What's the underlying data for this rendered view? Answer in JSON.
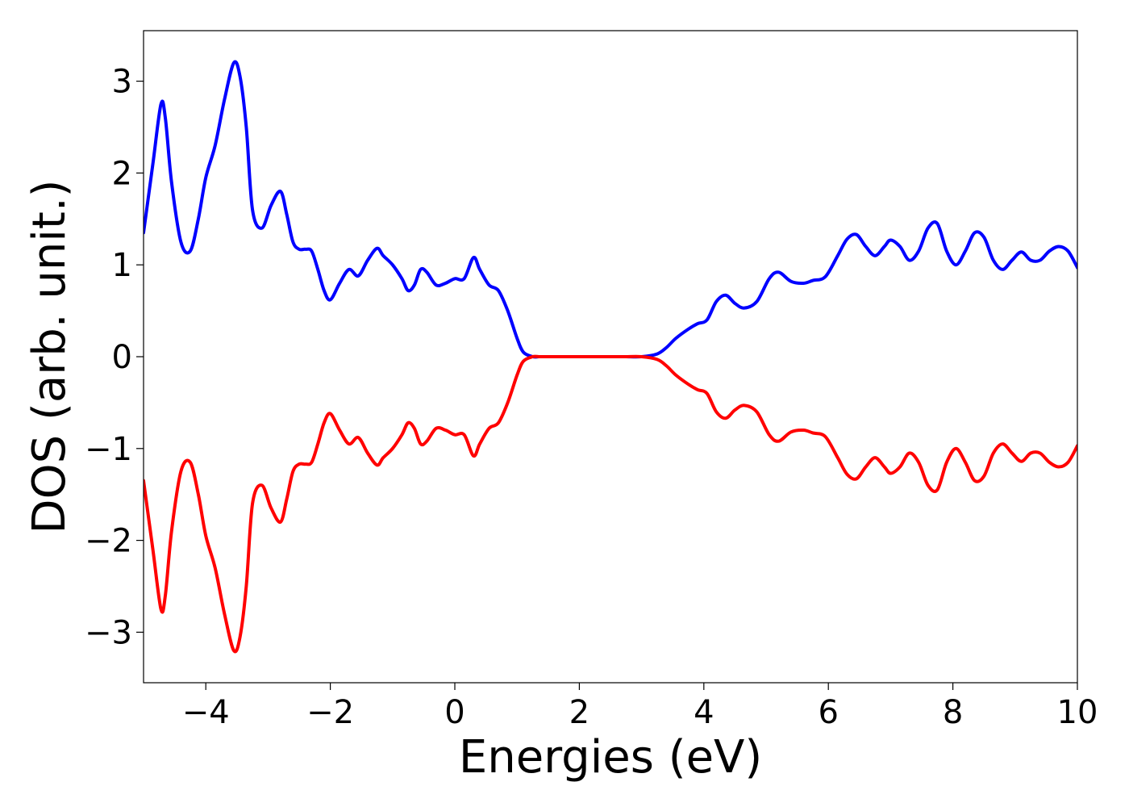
{
  "chart_data": {
    "type": "line",
    "title": "",
    "xlabel": "Energies (eV)",
    "ylabel": "DOS (arb. unit.)",
    "xlim": [
      -5,
      10
    ],
    "ylim": [
      -3.55,
      3.55
    ],
    "x_ticks": [
      -4,
      -2,
      0,
      2,
      4,
      6,
      8,
      10
    ],
    "y_ticks": [
      -3,
      -2,
      -1,
      0,
      1,
      2,
      3
    ],
    "x_tick_labels": [
      "−4",
      "−2",
      "0",
      "2",
      "4",
      "6",
      "8",
      "10"
    ],
    "y_tick_labels": [
      "−3",
      "−2",
      "−1",
      "0",
      "1",
      "2",
      "3"
    ],
    "grid": false,
    "legend": "none",
    "series": [
      {
        "color": "#0000ff",
        "x": [
          -5.0,
          -4.85,
          -4.72,
          -4.65,
          -4.55,
          -4.4,
          -4.25,
          -4.12,
          -4.0,
          -3.85,
          -3.7,
          -3.55,
          -3.45,
          -3.35,
          -3.25,
          -3.1,
          -2.95,
          -2.8,
          -2.7,
          -2.6,
          -2.5,
          -2.4,
          -2.3,
          -2.2,
          -2.1,
          -2.0,
          -1.85,
          -1.7,
          -1.55,
          -1.4,
          -1.25,
          -1.15,
          -1.0,
          -0.85,
          -0.75,
          -0.65,
          -0.55,
          -0.45,
          -0.3,
          -0.15,
          0.0,
          0.15,
          0.3,
          0.4,
          0.55,
          0.7,
          0.85,
          1.0,
          1.1,
          1.25,
          1.35,
          1.45,
          1.6,
          1.72,
          1.85,
          2.0,
          2.15,
          2.3,
          2.45,
          2.6,
          2.75,
          3.0,
          3.25,
          3.4,
          3.55,
          3.75,
          3.9,
          4.05,
          4.2,
          4.35,
          4.5,
          4.65,
          4.85,
          5.05,
          5.2,
          5.4,
          5.6,
          5.75,
          5.95,
          6.15,
          6.3,
          6.45,
          6.6,
          6.75,
          6.9,
          7.0,
          7.15,
          7.3,
          7.45,
          7.6,
          7.75,
          7.9,
          8.05,
          8.2,
          8.35,
          8.5,
          8.65,
          8.8,
          8.95,
          9.1,
          9.25,
          9.4,
          9.55,
          9.7,
          9.85,
          10.0
        ],
        "y": [
          1.35,
          2.1,
          2.75,
          2.6,
          1.9,
          1.25,
          1.15,
          1.5,
          1.95,
          2.3,
          2.8,
          3.2,
          3.05,
          2.5,
          1.6,
          1.4,
          1.65,
          1.8,
          1.55,
          1.25,
          1.17,
          1.17,
          1.15,
          0.95,
          0.72,
          0.62,
          0.8,
          0.95,
          0.88,
          1.05,
          1.18,
          1.1,
          1.0,
          0.85,
          0.72,
          0.78,
          0.95,
          0.92,
          0.78,
          0.8,
          0.85,
          0.85,
          1.08,
          0.95,
          0.78,
          0.72,
          0.5,
          0.2,
          0.05,
          0.0,
          0.0,
          0.0,
          0.0,
          0.0,
          0.0,
          0.0,
          0.0,
          0.0,
          0.0,
          0.0,
          0.0,
          0.0,
          0.03,
          0.1,
          0.2,
          0.3,
          0.36,
          0.4,
          0.6,
          0.67,
          0.58,
          0.53,
          0.6,
          0.85,
          0.92,
          0.82,
          0.8,
          0.83,
          0.87,
          1.1,
          1.28,
          1.33,
          1.2,
          1.1,
          1.2,
          1.27,
          1.2,
          1.05,
          1.15,
          1.4,
          1.45,
          1.15,
          1.0,
          1.15,
          1.35,
          1.3,
          1.05,
          0.95,
          1.05,
          1.14,
          1.05,
          1.05,
          1.15,
          1.2,
          1.15,
          0.97
        ]
      },
      {
        "color": "#ff0000",
        "x": [
          -5.0,
          -4.85,
          -4.72,
          -4.65,
          -4.55,
          -4.4,
          -4.25,
          -4.12,
          -4.0,
          -3.85,
          -3.7,
          -3.55,
          -3.45,
          -3.35,
          -3.25,
          -3.1,
          -2.95,
          -2.8,
          -2.7,
          -2.6,
          -2.5,
          -2.4,
          -2.3,
          -2.2,
          -2.1,
          -2.0,
          -1.85,
          -1.7,
          -1.55,
          -1.4,
          -1.25,
          -1.15,
          -1.0,
          -0.85,
          -0.75,
          -0.65,
          -0.55,
          -0.45,
          -0.3,
          -0.15,
          0.0,
          0.15,
          0.3,
          0.4,
          0.55,
          0.7,
          0.85,
          1.0,
          1.1,
          1.25,
          1.35,
          1.45,
          1.6,
          1.72,
          1.85,
          2.0,
          2.15,
          2.3,
          2.45,
          2.6,
          2.75,
          3.0,
          3.25,
          3.4,
          3.55,
          3.75,
          3.9,
          4.05,
          4.2,
          4.35,
          4.5,
          4.65,
          4.85,
          5.05,
          5.2,
          5.4,
          5.6,
          5.75,
          5.95,
          6.15,
          6.3,
          6.45,
          6.6,
          6.75,
          6.9,
          7.0,
          7.15,
          7.3,
          7.45,
          7.6,
          7.75,
          7.9,
          8.05,
          8.2,
          8.35,
          8.5,
          8.65,
          8.8,
          8.95,
          9.1,
          9.25,
          9.4,
          9.55,
          9.7,
          9.85,
          10.0
        ],
        "y": [
          -1.35,
          -2.1,
          -2.75,
          -2.6,
          -1.9,
          -1.25,
          -1.15,
          -1.5,
          -1.95,
          -2.3,
          -2.8,
          -3.2,
          -3.05,
          -2.5,
          -1.6,
          -1.4,
          -1.65,
          -1.8,
          -1.55,
          -1.25,
          -1.17,
          -1.17,
          -1.15,
          -0.95,
          -0.72,
          -0.62,
          -0.8,
          -0.95,
          -0.88,
          -1.05,
          -1.18,
          -1.1,
          -1.0,
          -0.85,
          -0.72,
          -0.78,
          -0.95,
          -0.92,
          -0.78,
          -0.8,
          -0.85,
          -0.85,
          -1.08,
          -0.95,
          -0.78,
          -0.72,
          -0.5,
          -0.2,
          -0.05,
          0.0,
          0.0,
          0.0,
          0.0,
          0.0,
          0.0,
          0.0,
          0.0,
          0.0,
          0.0,
          0.0,
          0.0,
          0.0,
          -0.03,
          -0.1,
          -0.2,
          -0.3,
          -0.36,
          -0.4,
          -0.6,
          -0.67,
          -0.58,
          -0.53,
          -0.6,
          -0.85,
          -0.92,
          -0.82,
          -0.8,
          -0.83,
          -0.87,
          -1.1,
          -1.28,
          -1.33,
          -1.2,
          -1.1,
          -1.2,
          -1.27,
          -1.2,
          -1.05,
          -1.15,
          -1.4,
          -1.45,
          -1.15,
          -1.0,
          -1.15,
          -1.35,
          -1.3,
          -1.05,
          -0.95,
          -1.05,
          -1.14,
          -1.05,
          -1.05,
          -1.15,
          -1.2,
          -1.15,
          -0.97
        ]
      }
    ]
  }
}
